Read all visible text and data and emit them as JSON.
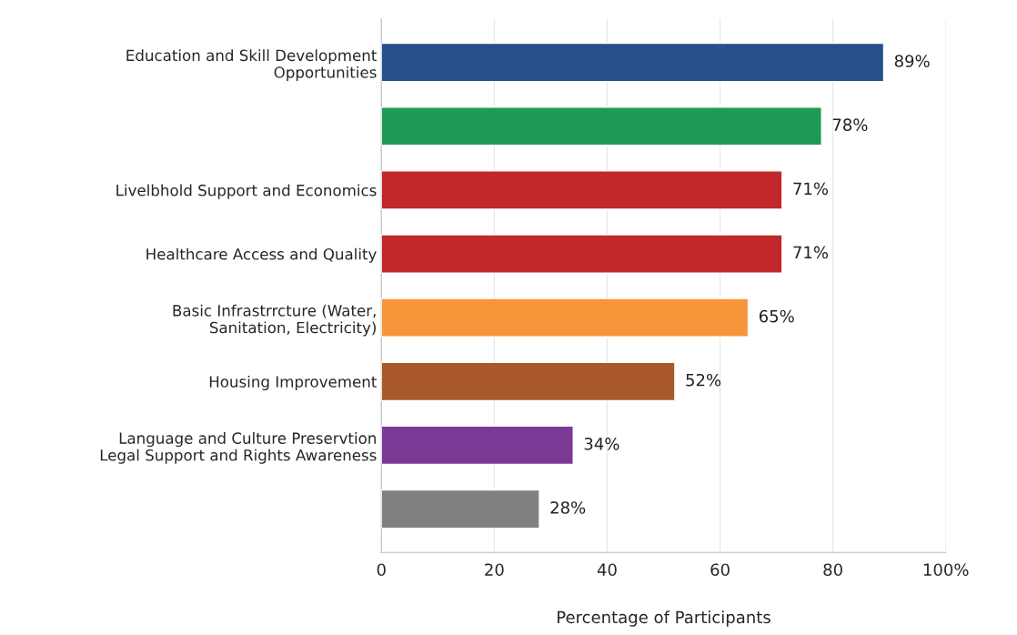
{
  "chart_data": {
    "type": "bar",
    "orientation": "horizontal",
    "xlabel": "Percentage of Participants",
    "categories": [
      "Education and Skill Development\nOpportunities",
      null,
      "Livelbhold Support and Economics",
      "Healthcare Access and Quality",
      "Basic Infrastrrcture (Water,\nSanitation, Electricity)",
      "Housing Improvement",
      "Language and Culture Preservtion\nLegal Support and Rights Awareness",
      null
    ],
    "values": [
      89,
      78,
      71,
      71,
      65,
      52,
      34,
      28
    ],
    "colors": [
      "#264f8c",
      "#1e9a55",
      "#c0282a",
      "#c0282a",
      "#f7953a",
      "#a8582a",
      "#7b3a96",
      "#808080"
    ],
    "value_labels": [
      "89%",
      "78%",
      "71%",
      "71%",
      "65%",
      "52%",
      "34%",
      "28%"
    ],
    "xlim": [
      0,
      100
    ],
    "xticks": [
      0,
      20,
      40,
      60,
      80,
      {
        "value": 100,
        "label": "100%"
      }
    ],
    "grid": "x"
  }
}
